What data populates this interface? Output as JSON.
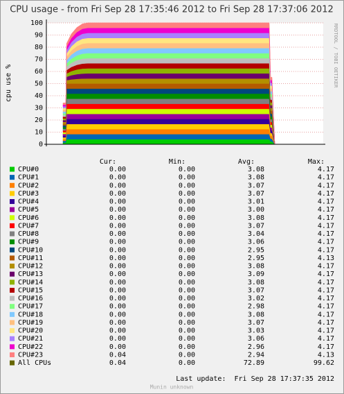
{
  "chart_data": {
    "type": "stacked_area",
    "title": "CPU usage - from Fri Sep 28 17:35:46 2012 to Fri Sep 28 17:37:06 2012",
    "y_label": "cpu use %",
    "side_text": "RRDTOOL / TOBI OETIKER",
    "ylim": [
      0,
      100
    ],
    "yticks": [
      0,
      10,
      20,
      30,
      40,
      50,
      60,
      70,
      80,
      90,
      100
    ],
    "xlim": [
      0,
      100
    ],
    "grid": true,
    "x": [
      6,
      7,
      7.3,
      9,
      11,
      13,
      15,
      80.5,
      81,
      81.5,
      82.5
    ],
    "series": [
      {
        "name": "CPU#0",
        "color": "#00cc00",
        "values": [
          1.42,
          1.42,
          4.17,
          4.17,
          4.17,
          4.17,
          4.17,
          4.17,
          2.3,
          2.3,
          0
        ]
      },
      {
        "name": "CPU#1",
        "color": "#0066b3",
        "values": [
          1.42,
          1.42,
          4.17,
          4.17,
          4.17,
          4.17,
          4.17,
          4.17,
          2.3,
          2.3,
          0
        ]
      },
      {
        "name": "CPU#2",
        "color": "#ff8000",
        "values": [
          1.42,
          1.42,
          4.17,
          4.17,
          4.17,
          4.17,
          4.17,
          4.17,
          2.3,
          2.3,
          0
        ]
      },
      {
        "name": "CPU#3",
        "color": "#ffcc00",
        "values": [
          1.42,
          1.42,
          4.17,
          4.17,
          4.17,
          4.17,
          4.17,
          4.17,
          2.3,
          2.3,
          0
        ]
      },
      {
        "name": "CPU#4",
        "color": "#330099",
        "values": [
          1.42,
          1.42,
          4.17,
          4.17,
          4.17,
          4.17,
          4.17,
          4.17,
          2.3,
          2.3,
          0
        ]
      },
      {
        "name": "CPU#5",
        "color": "#990099",
        "values": [
          1.42,
          1.42,
          4.17,
          4.17,
          4.17,
          4.17,
          4.17,
          4.17,
          2.3,
          2.3,
          0
        ]
      },
      {
        "name": "CPU#6",
        "color": "#ccff00",
        "values": [
          1.42,
          1.42,
          4.17,
          4.17,
          4.17,
          4.17,
          4.17,
          4.17,
          2.3,
          2.3,
          0
        ]
      },
      {
        "name": "CPU#7",
        "color": "#ff0000",
        "values": [
          1.42,
          1.42,
          4.17,
          4.17,
          4.17,
          4.17,
          4.17,
          4.17,
          2.3,
          2.3,
          0
        ]
      },
      {
        "name": "CPU#8",
        "color": "#808080",
        "values": [
          1.42,
          1.42,
          4.17,
          4.17,
          4.17,
          4.17,
          4.17,
          4.17,
          2.3,
          2.3,
          0
        ]
      },
      {
        "name": "CPU#9",
        "color": "#008f00",
        "values": [
          1.42,
          1.42,
          4.17,
          4.17,
          4.17,
          4.17,
          4.17,
          4.17,
          2.3,
          2.3,
          0
        ]
      },
      {
        "name": "CPU#10",
        "color": "#00487d",
        "values": [
          1.42,
          1.42,
          4.17,
          4.17,
          4.17,
          4.17,
          4.17,
          4.17,
          2.3,
          2.3,
          0
        ]
      },
      {
        "name": "CPU#11",
        "color": "#b35a00",
        "values": [
          1.42,
          1.42,
          4.17,
          4.17,
          4.17,
          4.17,
          4.17,
          4.17,
          2.3,
          2.3,
          0
        ]
      },
      {
        "name": "CPU#12",
        "color": "#b38f00",
        "values": [
          1.42,
          1.42,
          2.75,
          3.4,
          3.85,
          4.1,
          4.17,
          4.17,
          2.3,
          2.3,
          0
        ]
      },
      {
        "name": "CPU#13",
        "color": "#6b006b",
        "values": [
          1.42,
          1.42,
          2.75,
          3.4,
          3.85,
          4.1,
          4.17,
          4.17,
          2.3,
          2.3,
          0
        ]
      },
      {
        "name": "CPU#14",
        "color": "#8fb300",
        "values": [
          1.42,
          1.42,
          2.75,
          3.4,
          3.85,
          4.1,
          4.17,
          4.17,
          2.3,
          2.3,
          0
        ]
      },
      {
        "name": "CPU#15",
        "color": "#b30000",
        "values": [
          1.42,
          1.42,
          2.75,
          3.4,
          3.85,
          4.1,
          4.17,
          4.17,
          2.3,
          2.3,
          0
        ]
      },
      {
        "name": "CPU#16",
        "color": "#bebebe",
        "values": [
          1.42,
          1.42,
          2.75,
          3.4,
          3.85,
          4.1,
          4.17,
          4.17,
          2.3,
          2.3,
          0
        ]
      },
      {
        "name": "CPU#17",
        "color": "#80ff80",
        "values": [
          1.42,
          1.42,
          2.75,
          3.4,
          3.85,
          4.1,
          4.17,
          4.17,
          2.3,
          2.3,
          0
        ]
      },
      {
        "name": "CPU#18",
        "color": "#80c9ff",
        "values": [
          1.42,
          1.42,
          2.75,
          3.4,
          3.85,
          4.1,
          4.17,
          4.17,
          2.3,
          2.3,
          0
        ]
      },
      {
        "name": "CPU#19",
        "color": "#ffc080",
        "values": [
          1.42,
          1.42,
          2.75,
          3.4,
          3.85,
          4.1,
          4.17,
          4.17,
          2.3,
          2.3,
          0
        ]
      },
      {
        "name": "CPU#20",
        "color": "#ffe680",
        "values": [
          1.42,
          1.42,
          2.75,
          3.4,
          3.85,
          4.1,
          4.17,
          4.17,
          2.3,
          2.3,
          0
        ]
      },
      {
        "name": "CPU#21",
        "color": "#aa80ff",
        "values": [
          1.42,
          1.42,
          2.75,
          3.4,
          3.85,
          4.1,
          4.17,
          4.17,
          2.3,
          2.3,
          0
        ]
      },
      {
        "name": "CPU#22",
        "color": "#ee00cc",
        "values": [
          1.42,
          1.42,
          2.75,
          3.4,
          3.85,
          4.1,
          4.17,
          4.17,
          2.3,
          2.3,
          0
        ]
      },
      {
        "name": "CPU#23",
        "color": "#ff8080",
        "values": [
          1.42,
          1.42,
          2.75,
          3.4,
          3.85,
          4.1,
          4.17,
          4.17,
          2.3,
          2.3,
          0
        ]
      }
    ],
    "stats": {
      "headers": [
        "Cur:",
        "Min:",
        "Avg:",
        "Max:"
      ],
      "rows": [
        [
          "0.00",
          "0.00",
          "3.08",
          "4.17"
        ],
        [
          "0.00",
          "0.00",
          "3.08",
          "4.17"
        ],
        [
          "0.00",
          "0.00",
          "3.07",
          "4.17"
        ],
        [
          "0.00",
          "0.00",
          "3.07",
          "4.17"
        ],
        [
          "0.00",
          "0.00",
          "3.01",
          "4.17"
        ],
        [
          "0.00",
          "0.00",
          "3.00",
          "4.17"
        ],
        [
          "0.00",
          "0.00",
          "3.08",
          "4.17"
        ],
        [
          "0.00",
          "0.00",
          "3.07",
          "4.17"
        ],
        [
          "0.00",
          "0.00",
          "3.04",
          "4.17"
        ],
        [
          "0.00",
          "0.00",
          "3.06",
          "4.17"
        ],
        [
          "0.00",
          "0.00",
          "2.95",
          "4.17"
        ],
        [
          "0.00",
          "0.00",
          "2.95",
          "4.13"
        ],
        [
          "0.00",
          "0.00",
          "3.08",
          "4.17"
        ],
        [
          "0.00",
          "0.00",
          "3.09",
          "4.17"
        ],
        [
          "0.00",
          "0.00",
          "3.08",
          "4.17"
        ],
        [
          "0.00",
          "0.00",
          "3.07",
          "4.17"
        ],
        [
          "0.00",
          "0.00",
          "3.02",
          "4.17"
        ],
        [
          "0.00",
          "0.00",
          "2.98",
          "4.17"
        ],
        [
          "0.00",
          "0.00",
          "3.08",
          "4.17"
        ],
        [
          "0.00",
          "0.00",
          "3.07",
          "4.17"
        ],
        [
          "0.00",
          "0.00",
          "3.03",
          "4.17"
        ],
        [
          "0.00",
          "0.00",
          "3.06",
          "4.17"
        ],
        [
          "0.00",
          "0.00",
          "2.96",
          "4.17"
        ],
        [
          "0.04",
          "0.00",
          "2.94",
          "4.13"
        ]
      ],
      "total": {
        "name": "All CPUs",
        "color": "#666600",
        "values": [
          "0.04",
          "0.00",
          "72.89",
          "99.62"
        ]
      }
    },
    "last_update": "Last update:  Fri Sep 28 17:37:35 2012",
    "footer": "Munin unknown"
  }
}
